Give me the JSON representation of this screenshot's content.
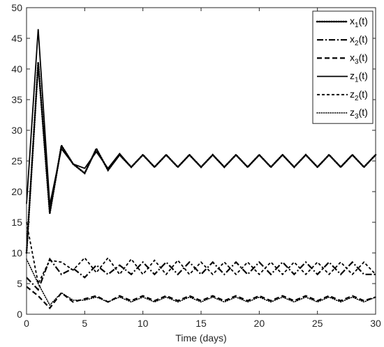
{
  "chart_data": {
    "type": "line",
    "title": "",
    "xlabel": "Time (days)",
    "ylabel": "",
    "xlim": [
      0,
      30
    ],
    "ylim": [
      0,
      50
    ],
    "xticks": [
      0,
      5,
      10,
      15,
      20,
      25,
      30
    ],
    "yticks": [
      0,
      5,
      10,
      15,
      20,
      25,
      30,
      35,
      40,
      45,
      50
    ],
    "grid": false,
    "legend_position": "top-right",
    "x": [
      0,
      1,
      2,
      3,
      4,
      5,
      6,
      7,
      8,
      9,
      10,
      11,
      12,
      13,
      14,
      15,
      16,
      17,
      18,
      19,
      20,
      21,
      22,
      23,
      24,
      25,
      26,
      27,
      28,
      29,
      30
    ],
    "series": [
      {
        "name": "x",
        "sub": "1",
        "dash": "dotted-heavy",
        "color": "#000000",
        "values": [
          10.0,
          41.0,
          16.5,
          27.5,
          24.5,
          23.0,
          27.0,
          23.5,
          26.0,
          24.0,
          26.0,
          24.0,
          26.0,
          24.0,
          26.0,
          24.0,
          26.0,
          24.0,
          26.0,
          24.0,
          26.0,
          24.0,
          26.0,
          24.0,
          26.0,
          24.0,
          26.0,
          24.0,
          26.0,
          24.0,
          26.0
        ]
      },
      {
        "name": "x",
        "sub": "2",
        "dash": "dash-dot",
        "color": "#000000",
        "values": [
          6.0,
          4.0,
          9.0,
          6.5,
          7.5,
          6.0,
          8.0,
          6.5,
          8.0,
          6.5,
          8.5,
          6.5,
          8.5,
          6.5,
          8.5,
          6.5,
          8.5,
          6.5,
          8.5,
          6.5,
          8.5,
          6.5,
          8.5,
          6.5,
          8.5,
          6.5,
          8.5,
          6.5,
          8.5,
          6.5,
          6.5
        ]
      },
      {
        "name": "x",
        "sub": "3",
        "dash": "dashed",
        "color": "#000000",
        "values": [
          4.5,
          3.0,
          1.0,
          3.5,
          2.0,
          2.5,
          3.0,
          2.0,
          3.0,
          2.2,
          3.0,
          2.2,
          3.0,
          2.2,
          3.0,
          2.2,
          3.0,
          2.2,
          3.0,
          2.2,
          3.0,
          2.2,
          3.0,
          2.2,
          3.0,
          2.2,
          3.0,
          2.2,
          3.0,
          2.2,
          2.8
        ]
      },
      {
        "name": "z",
        "sub": "1",
        "dash": "solid",
        "color": "#000000",
        "values": [
          18.0,
          46.5,
          17.8,
          27.0,
          24.5,
          23.8,
          26.5,
          23.8,
          26.2,
          24.0,
          26.0,
          24.0,
          26.0,
          24.0,
          26.0,
          24.0,
          26.0,
          24.0,
          26.0,
          24.0,
          26.0,
          24.0,
          26.0,
          24.0,
          26.0,
          24.0,
          26.0,
          24.0,
          26.0,
          24.0,
          26.0
        ]
      },
      {
        "name": "z",
        "sub": "2",
        "dash": "short-dash",
        "color": "#000000",
        "values": [
          15.0,
          5.0,
          8.8,
          8.5,
          7.2,
          9.2,
          6.8,
          9.2,
          6.5,
          9.0,
          6.5,
          8.8,
          6.5,
          8.8,
          6.5,
          8.5,
          6.5,
          8.5,
          6.5,
          8.5,
          6.5,
          8.5,
          6.5,
          8.5,
          6.5,
          8.5,
          6.5,
          8.5,
          6.5,
          8.5,
          6.5
        ]
      },
      {
        "name": "z",
        "sub": "3",
        "dash": "dotted",
        "color": "#000000",
        "values": [
          9.0,
          5.0,
          1.5,
          3.5,
          2.3,
          2.3,
          2.8,
          2.0,
          2.8,
          2.0,
          2.8,
          2.0,
          2.8,
          2.0,
          2.8,
          2.0,
          2.8,
          2.0,
          2.8,
          2.0,
          2.8,
          2.0,
          2.8,
          2.0,
          2.8,
          2.0,
          2.8,
          2.0,
          2.8,
          2.0,
          2.8
        ]
      }
    ]
  }
}
